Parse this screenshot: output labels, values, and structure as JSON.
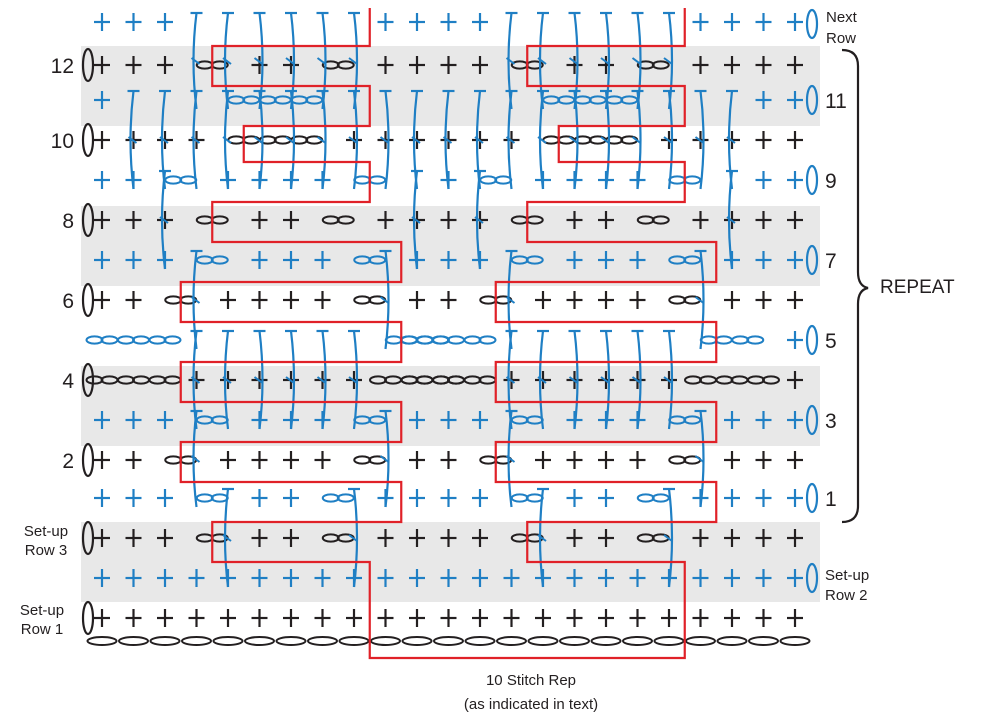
{
  "chart_labels": {
    "next_row": [
      "Next",
      "Row"
    ],
    "set_up_row_1": [
      "Set-up",
      "Row 1"
    ],
    "set_up_row_2": [
      "Set-up",
      "Row 2"
    ],
    "set_up_row_3": [
      "Set-up",
      "Row 3"
    ],
    "repeat": "REPEAT",
    "stitch_rep": [
      "10 Stitch Rep",
      "(as indicated in text)"
    ]
  },
  "row_numbers": [
    {
      "label": "1",
      "side": "right"
    },
    {
      "label": "2",
      "side": "left"
    },
    {
      "label": "3",
      "side": "right"
    },
    {
      "label": "4",
      "side": "left"
    },
    {
      "label": "5",
      "side": "right"
    },
    {
      "label": "6",
      "side": "left"
    },
    {
      "label": "7",
      "side": "right"
    },
    {
      "label": "8",
      "side": "left"
    },
    {
      "label": "9",
      "side": "right"
    },
    {
      "label": "10",
      "side": "left"
    },
    {
      "label": "11",
      "side": "right"
    },
    {
      "label": "12",
      "side": "left"
    }
  ],
  "colors": {
    "black_stitch": "#231f20",
    "blue_stitch": "#1f7fc4",
    "repeat_outline": "#e02128",
    "row_shade": "#e8e8e8"
  },
  "symbol_names": [
    "single-crochet",
    "chain",
    "long-stitch",
    "turning-chain"
  ],
  "grid": {
    "stitch_columns": 23,
    "chain_count": 23
  }
}
